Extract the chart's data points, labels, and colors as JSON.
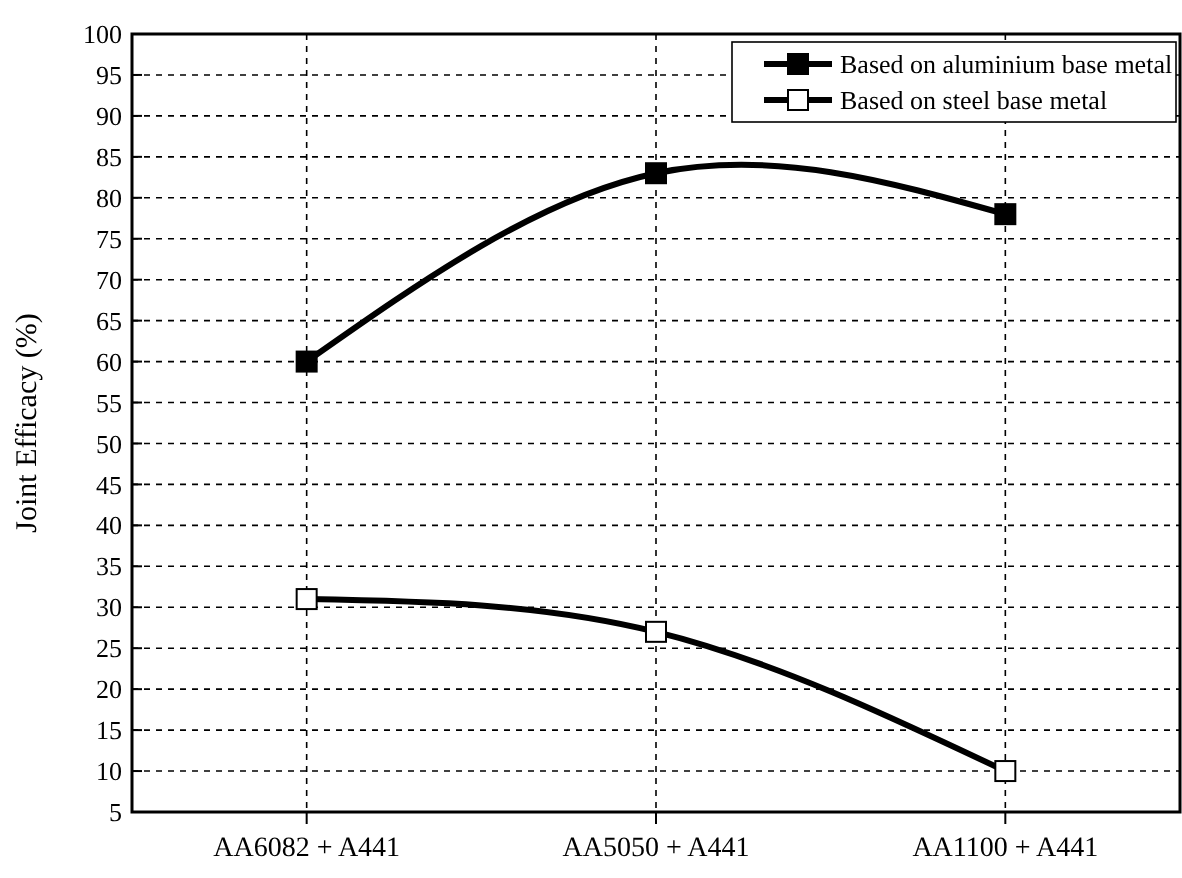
{
  "chart_data": {
    "type": "line",
    "ylabel": "Joint Efficacy (%)",
    "categories": [
      "AA6082 + A441",
      "AA5050 + A441",
      "AA1100 + A441"
    ],
    "series": [
      {
        "name": "Based on aluminium base metal",
        "color": "#000000",
        "values": [
          60,
          83,
          78
        ]
      },
      {
        "name": "Based on steel base metal",
        "color": "#000000",
        "values": [
          31,
          27,
          10
        ]
      }
    ],
    "ylim": [
      5,
      100
    ],
    "yticks": [
      5,
      10,
      15,
      20,
      25,
      30,
      35,
      40,
      45,
      50,
      55,
      60,
      65,
      70,
      75,
      80,
      85,
      90,
      95,
      100
    ],
    "grid": true,
    "legend": "top right",
    "marker": "square",
    "line_style": "solid"
  }
}
